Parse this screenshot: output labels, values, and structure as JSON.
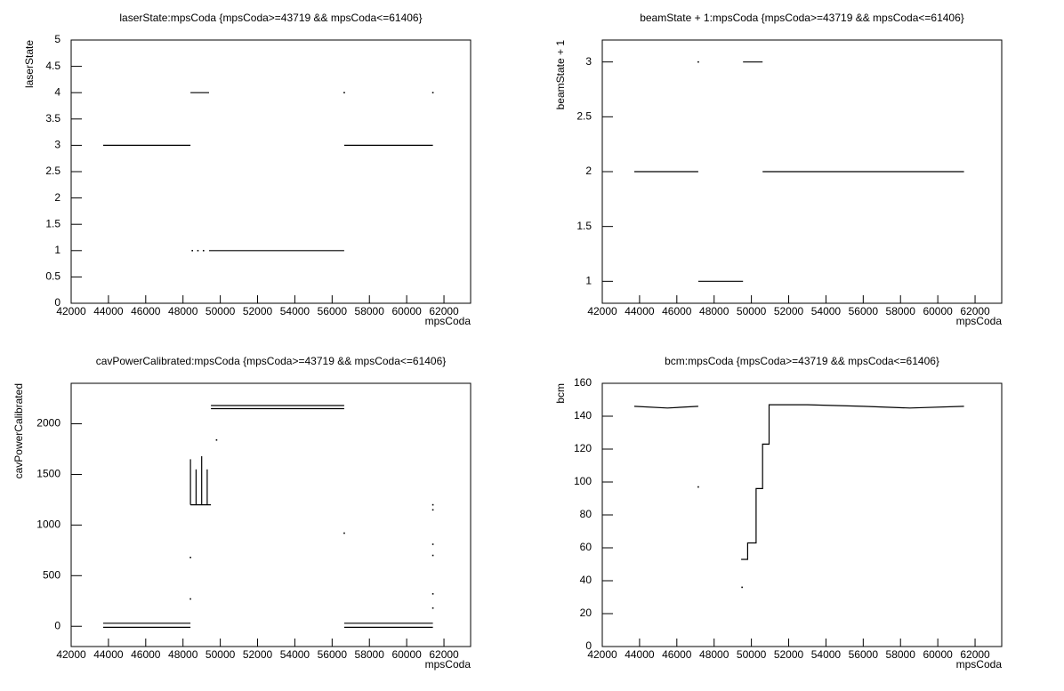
{
  "chart_data": [
    {
      "type": "line",
      "title": "laserState:mpsCoda {mpsCoda>=43719 && mpsCoda<=61406}",
      "xlabel": "mpsCoda",
      "ylabel": "laserState",
      "color": "#000000",
      "x": [
        43719,
        48400,
        null,
        48400,
        49400,
        null,
        48500,
        null,
        48800,
        null,
        49100,
        null,
        49400,
        56650,
        null,
        56650,
        61406,
        null,
        56650,
        null,
        61406
      ],
      "values": [
        3,
        3,
        null,
        4,
        4,
        null,
        1,
        null,
        1,
        null,
        1,
        null,
        1,
        1,
        null,
        3,
        3,
        null,
        4,
        null,
        4
      ],
      "xlim": [
        42000,
        63430
      ],
      "ylim": [
        0,
        5
      ],
      "xticks": [
        42000,
        44000,
        46000,
        48000,
        50000,
        52000,
        54000,
        56000,
        58000,
        60000,
        62000
      ],
      "yticks": [
        0,
        0.5,
        1,
        1.5,
        2,
        2.5,
        3,
        3.5,
        4,
        4.5,
        5
      ]
    },
    {
      "type": "line",
      "title": "beamState + 1:mpsCoda {mpsCoda>=43719 && mpsCoda<=61406}",
      "xlabel": "mpsCoda",
      "ylabel": "beamState + 1",
      "color": "#000000",
      "x": [
        43719,
        47150,
        null,
        47150,
        null,
        47150,
        49550,
        null,
        49550,
        50600,
        null,
        50600,
        61406
      ],
      "values": [
        2,
        2,
        null,
        3,
        null,
        1,
        1,
        null,
        3,
        3,
        null,
        2,
        2
      ],
      "xlim": [
        42000,
        63430
      ],
      "ylim": [
        0.8,
        3.2
      ],
      "xticks": [
        42000,
        44000,
        46000,
        48000,
        50000,
        52000,
        54000,
        56000,
        58000,
        60000,
        62000
      ],
      "yticks": [
        1,
        1.5,
        2,
        2.5,
        3
      ]
    },
    {
      "type": "line",
      "title": "cavPowerCalibrated:mpsCoda {mpsCoda>=43719 && mpsCoda<=61406}",
      "xlabel": "mpsCoda",
      "ylabel": "cavPowerCalibrated",
      "color": "#000000",
      "x": [
        43719,
        48400,
        null,
        43719,
        48400,
        null,
        48400,
        48400,
        null,
        48700,
        48700,
        null,
        49000,
        49000,
        null,
        49300,
        49300,
        null,
        48400,
        49500,
        null,
        49500,
        56650,
        null,
        49500,
        56650,
        null,
        48400,
        null,
        48400,
        null,
        49800,
        null,
        56650,
        null,
        56650,
        61406,
        null,
        56650,
        61406,
        null,
        61406,
        null,
        61406,
        null,
        61406,
        null,
        61406,
        null,
        61406,
        null,
        61406
      ],
      "values": [
        30,
        30,
        null,
        -10,
        -10,
        null,
        1200,
        1650,
        null,
        1200,
        1550,
        null,
        1200,
        1680,
        null,
        1200,
        1550,
        null,
        1200,
        1200,
        null,
        2180,
        2180,
        null,
        2150,
        2150,
        null,
        680,
        null,
        270,
        null,
        1840,
        null,
        920,
        null,
        30,
        30,
        null,
        -10,
        -10,
        null,
        1200,
        null,
        1150,
        null,
        810,
        null,
        700,
        null,
        320,
        null,
        180
      ],
      "xlim": [
        42000,
        63430
      ],
      "ylim": [
        -200,
        2400
      ],
      "xticks": [
        42000,
        44000,
        46000,
        48000,
        50000,
        52000,
        54000,
        56000,
        58000,
        60000,
        62000
      ],
      "yticks": [
        0,
        500,
        1000,
        1500,
        2000
      ]
    },
    {
      "type": "line",
      "title": "bcm:mpsCoda {mpsCoda>=43719 && mpsCoda<=61406}",
      "xlabel": "mpsCoda",
      "ylabel": "bcm",
      "color": "#000000",
      "x": [
        43719,
        45500,
        47150,
        null,
        47150,
        null,
        49500,
        null,
        49450,
        49800,
        49800,
        50250,
        50250,
        50600,
        50600,
        50950,
        50950,
        53000,
        56000,
        58500,
        61406
      ],
      "values": [
        146,
        145,
        146,
        null,
        97,
        null,
        36,
        null,
        53,
        53,
        63,
        63,
        96,
        96,
        123,
        123,
        147,
        147,
        146,
        145,
        146
      ],
      "xlim": [
        42000,
        63430
      ],
      "ylim": [
        0,
        160
      ],
      "xticks": [
        42000,
        44000,
        46000,
        48000,
        50000,
        52000,
        54000,
        56000,
        58000,
        60000,
        62000
      ],
      "yticks": [
        0,
        20,
        40,
        60,
        80,
        100,
        120,
        140,
        160
      ]
    }
  ]
}
